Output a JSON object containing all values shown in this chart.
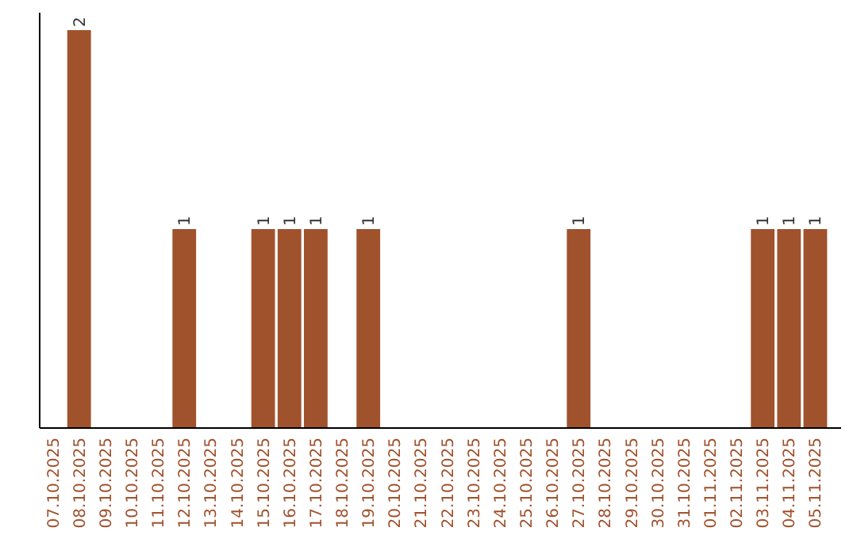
{
  "chart_data": {
    "type": "bar",
    "categories": [
      "07.10.2025",
      "08.10.2025",
      "09.10.2025",
      "10.10.2025",
      "11.10.2025",
      "12.10.2025",
      "13.10.2025",
      "14.10.2025",
      "15.10.2025",
      "16.10.2025",
      "17.10.2025",
      "18.10.2025",
      "19.10.2025",
      "20.10.2025",
      "21.10.2025",
      "22.10.2025",
      "23.10.2025",
      "24.10.2025",
      "25.10.2025",
      "26.10.2025",
      "27.10.2025",
      "28.10.2025",
      "29.10.2025",
      "30.10.2025",
      "31.10.2025",
      "01.11.2025",
      "02.11.2025",
      "03.11.2025",
      "04.11.2025",
      "05.11.2025"
    ],
    "values": [
      0,
      2,
      0,
      0,
      0,
      1,
      0,
      0,
      1,
      1,
      1,
      0,
      1,
      0,
      0,
      0,
      0,
      0,
      0,
      0,
      1,
      0,
      0,
      0,
      0,
      0,
      0,
      1,
      1,
      1
    ],
    "value_labels": [
      null,
      "2",
      null,
      null,
      null,
      "1",
      null,
      null,
      "1",
      "1",
      "1",
      null,
      "1",
      null,
      null,
      null,
      null,
      null,
      null,
      null,
      "1",
      null,
      null,
      null,
      null,
      null,
      null,
      "1",
      "1",
      "1"
    ],
    "color": "#a0522d"
  }
}
